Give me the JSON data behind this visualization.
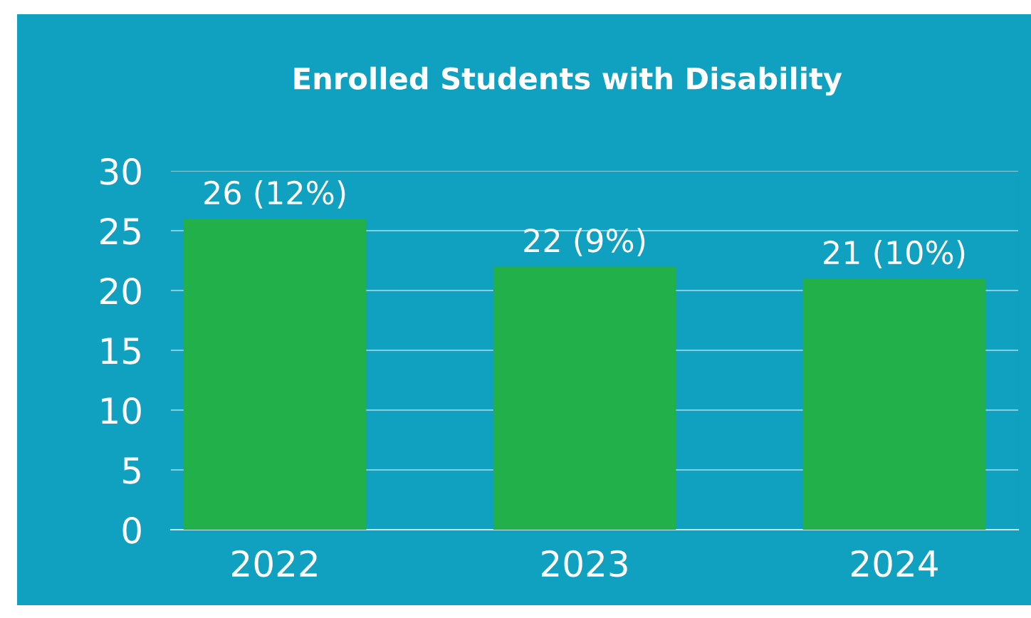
{
  "chart_data": {
    "type": "bar",
    "title": "Enrolled Students with Disability",
    "categories": [
      "2022",
      "2023",
      "2024"
    ],
    "values": [
      26,
      22,
      21
    ],
    "value_labels": [
      "26 (12%)",
      "22 (9%)",
      "21 (10%)"
    ],
    "color": "#21b04a",
    "ylim": [
      0,
      30
    ],
    "yticks": [
      0,
      5,
      10,
      15,
      20,
      25,
      30
    ],
    "grid": "y"
  }
}
